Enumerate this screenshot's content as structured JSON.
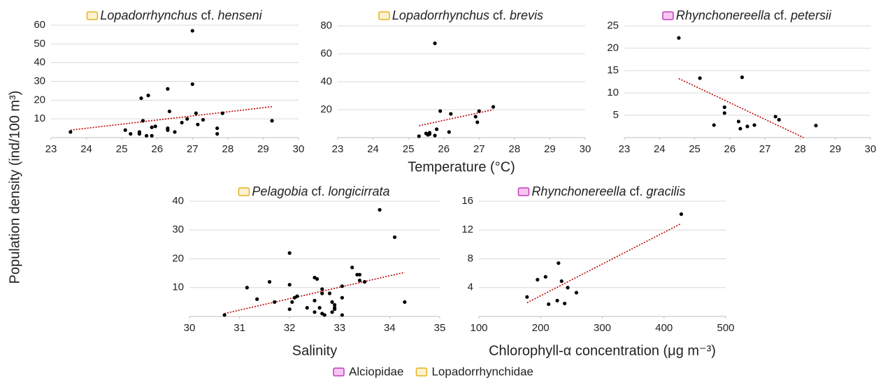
{
  "chart_data": [
    {
      "type": "scatter",
      "title": [
        "Lopadorrhynchus",
        "cf.",
        "henseni"
      ],
      "legend_icon": {
        "fill": "#fdf2d0",
        "stroke": "#e3b21c"
      },
      "x": [
        23.55,
        25.1,
        25.25,
        25.5,
        25.5,
        25.55,
        25.6,
        25.7,
        25.75,
        25.85,
        25.85,
        25.95,
        26.3,
        26.3,
        26.3,
        26.35,
        26.5,
        26.7,
        26.85,
        27,
        27,
        27.1,
        27.15,
        27.3,
        27.7,
        27.7,
        27.85,
        29.25
      ],
      "values": [
        3,
        4,
        2,
        3,
        2,
        21,
        9,
        1,
        22.5,
        1,
        5.5,
        6,
        5,
        4,
        26,
        14,
        3,
        8,
        10,
        57,
        28.5,
        13,
        7,
        9.5,
        5,
        2,
        13,
        9
      ],
      "trend": {
        "x": [
          23.55,
          29.25
        ],
        "y": [
          4,
          16.5
        ]
      },
      "xlim": [
        23,
        30
      ],
      "xticks": [
        23,
        24,
        25,
        26,
        27,
        28,
        29,
        30
      ],
      "ylim": [
        0,
        60
      ],
      "yticks": [
        10,
        20,
        30,
        40,
        50,
        60
      ],
      "grid": true
    },
    {
      "type": "scatter",
      "title": [
        "Lopadorrhynchus",
        "cf.",
        "brevis"
      ],
      "legend_icon": {
        "fill": "#fdf2d0",
        "stroke": "#e3b21c"
      },
      "xlabel": "Temperature (°C)",
      "x": [
        25.3,
        25.5,
        25.55,
        25.6,
        25.6,
        25.75,
        25.8,
        25.9,
        25.75,
        26.2,
        26.15,
        26.9,
        26.95,
        27,
        27.4
      ],
      "values": [
        1,
        3,
        2,
        3.5,
        2.5,
        1.5,
        6,
        19,
        67.5,
        17,
        4,
        15,
        11,
        19,
        22
      ],
      "trend": {
        "x": [
          25.3,
          27.4
        ],
        "y": [
          8.5,
          20
        ]
      },
      "xlim": [
        23,
        30
      ],
      "xticks": [
        23,
        24,
        25,
        26,
        27,
        28,
        29,
        30
      ],
      "ylim": [
        0,
        80
      ],
      "yticks": [
        20,
        40,
        60,
        80
      ],
      "grid": true
    },
    {
      "type": "scatter",
      "title": [
        "Rhynchonereella",
        "cf.",
        "petersii"
      ],
      "legend_icon": {
        "fill": "#f7c6f0",
        "stroke": "#c43cc0"
      },
      "x": [
        24.55,
        25.15,
        25.55,
        25.85,
        25.85,
        26.25,
        26.3,
        26.35,
        26.5,
        26.7,
        27.3,
        27.4,
        28.45
      ],
      "values": [
        22.3,
        13.3,
        2.8,
        6.8,
        5.5,
        3.6,
        2,
        13.5,
        2.5,
        2.8,
        4.7,
        4,
        2.7
      ],
      "trend": {
        "x": [
          24.55,
          28.1
        ],
        "y": [
          13.2,
          0
        ]
      },
      "xlim": [
        23,
        30
      ],
      "xticks": [
        23,
        24,
        25,
        26,
        27,
        28,
        29,
        30
      ],
      "ylim": [
        0,
        25
      ],
      "yticks": [
        5,
        10,
        15,
        20,
        25
      ],
      "grid": true
    },
    {
      "type": "scatter",
      "title": [
        "Pelagobia",
        "cf.",
        "longicirrata"
      ],
      "legend_icon": {
        "fill": "#fdf2d0",
        "stroke": "#e3b21c"
      },
      "xlabel": "Salinity",
      "x": [
        30.7,
        31.15,
        31.35,
        31.6,
        31.7,
        32,
        32,
        32.05,
        32,
        32.1,
        32.15,
        32.35,
        32.5,
        32.5,
        32.5,
        32.55,
        32.6,
        32.65,
        32.65,
        32.65,
        32.7,
        32.8,
        32.85,
        32.9,
        32.9,
        32.85,
        32.9,
        33.05,
        33.05,
        33.05,
        33.25,
        33.35,
        33.4,
        33.4,
        33.5,
        33.8,
        34.1,
        34.3
      ],
      "values": [
        0.5,
        10,
        6,
        12,
        5,
        22,
        11,
        5,
        2.5,
        6.5,
        7,
        3,
        13.5,
        5.5,
        1.5,
        13,
        3,
        1,
        8,
        9.5,
        0.5,
        8,
        5,
        4,
        3,
        1.5,
        2.5,
        6.5,
        10.5,
        0.5,
        17,
        14.5,
        14.5,
        12.5,
        12,
        37,
        27.5,
        5
      ],
      "trend": {
        "x": [
          30.7,
          34.3
        ],
        "y": [
          1,
          15.3
        ]
      },
      "xlim": [
        30,
        35
      ],
      "xticks": [
        30,
        31,
        32,
        33,
        34,
        35
      ],
      "ylim": [
        0,
        40
      ],
      "yticks": [
        10,
        20,
        30,
        40
      ],
      "grid": true
    },
    {
      "type": "scatter",
      "title": [
        "Rhynchonereella",
        "cf.",
        "gracilis"
      ],
      "legend_icon": {
        "fill": "#f7c6f0",
        "stroke": "#c43cc0"
      },
      "xlabel": "Chlorophyll-α concentration (μg m⁻³)",
      "x": [
        178,
        195,
        208,
        213,
        227,
        229,
        234,
        239,
        244,
        258,
        428
      ],
      "values": [
        2.7,
        5.1,
        5.5,
        1.7,
        2.2,
        7.4,
        4.9,
        1.8,
        4,
        3.3,
        14.2
      ],
      "trend": {
        "x": [
          178,
          428
        ],
        "y": [
          1.9,
          12.9
        ]
      },
      "xlim": [
        100,
        500
      ],
      "xticks": [
        100,
        200,
        300,
        400,
        500
      ],
      "ylim": [
        0,
        16
      ],
      "yticks": [
        4,
        8,
        12,
        16
      ],
      "grid": true
    }
  ],
  "y_label": "Population density (ind/100 m³)",
  "legend": [
    {
      "name": "Alciopidae",
      "fill": "#f7c6f0",
      "stroke": "#c43cc0"
    },
    {
      "name": "Lopadorrhynchidae",
      "fill": "#fdf2d0",
      "stroke": "#e3b21c"
    }
  ]
}
